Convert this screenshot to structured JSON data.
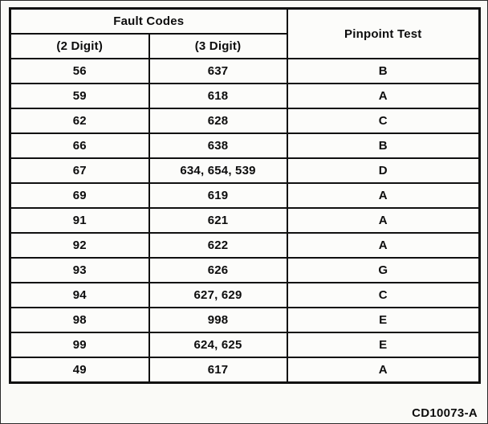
{
  "table": {
    "header": {
      "group_title": "Fault Codes",
      "col_2digit": "(2 Digit)",
      "col_3digit": "(3 Digit)",
      "col_pinpoint": "Pinpoint Test"
    },
    "rows": [
      {
        "two_digit": "56",
        "three_digit": "637",
        "pinpoint": "B"
      },
      {
        "two_digit": "59",
        "three_digit": "618",
        "pinpoint": "A"
      },
      {
        "two_digit": "62",
        "three_digit": "628",
        "pinpoint": "C"
      },
      {
        "two_digit": "66",
        "three_digit": "638",
        "pinpoint": "B"
      },
      {
        "two_digit": "67",
        "three_digit": "634, 654, 539",
        "pinpoint": "D"
      },
      {
        "two_digit": "69",
        "three_digit": "619",
        "pinpoint": "A"
      },
      {
        "two_digit": "91",
        "three_digit": "621",
        "pinpoint": "A"
      },
      {
        "two_digit": "92",
        "three_digit": "622",
        "pinpoint": "A"
      },
      {
        "two_digit": "93",
        "three_digit": "626",
        "pinpoint": "G"
      },
      {
        "two_digit": "94",
        "three_digit": "627, 629",
        "pinpoint": "C"
      },
      {
        "two_digit": "98",
        "three_digit": "998",
        "pinpoint": "E"
      },
      {
        "two_digit": "99",
        "three_digit": "624, 625",
        "pinpoint": "E"
      },
      {
        "two_digit": "49",
        "three_digit": "617",
        "pinpoint": "A"
      }
    ]
  },
  "footer": {
    "code": "CD10073-A"
  }
}
